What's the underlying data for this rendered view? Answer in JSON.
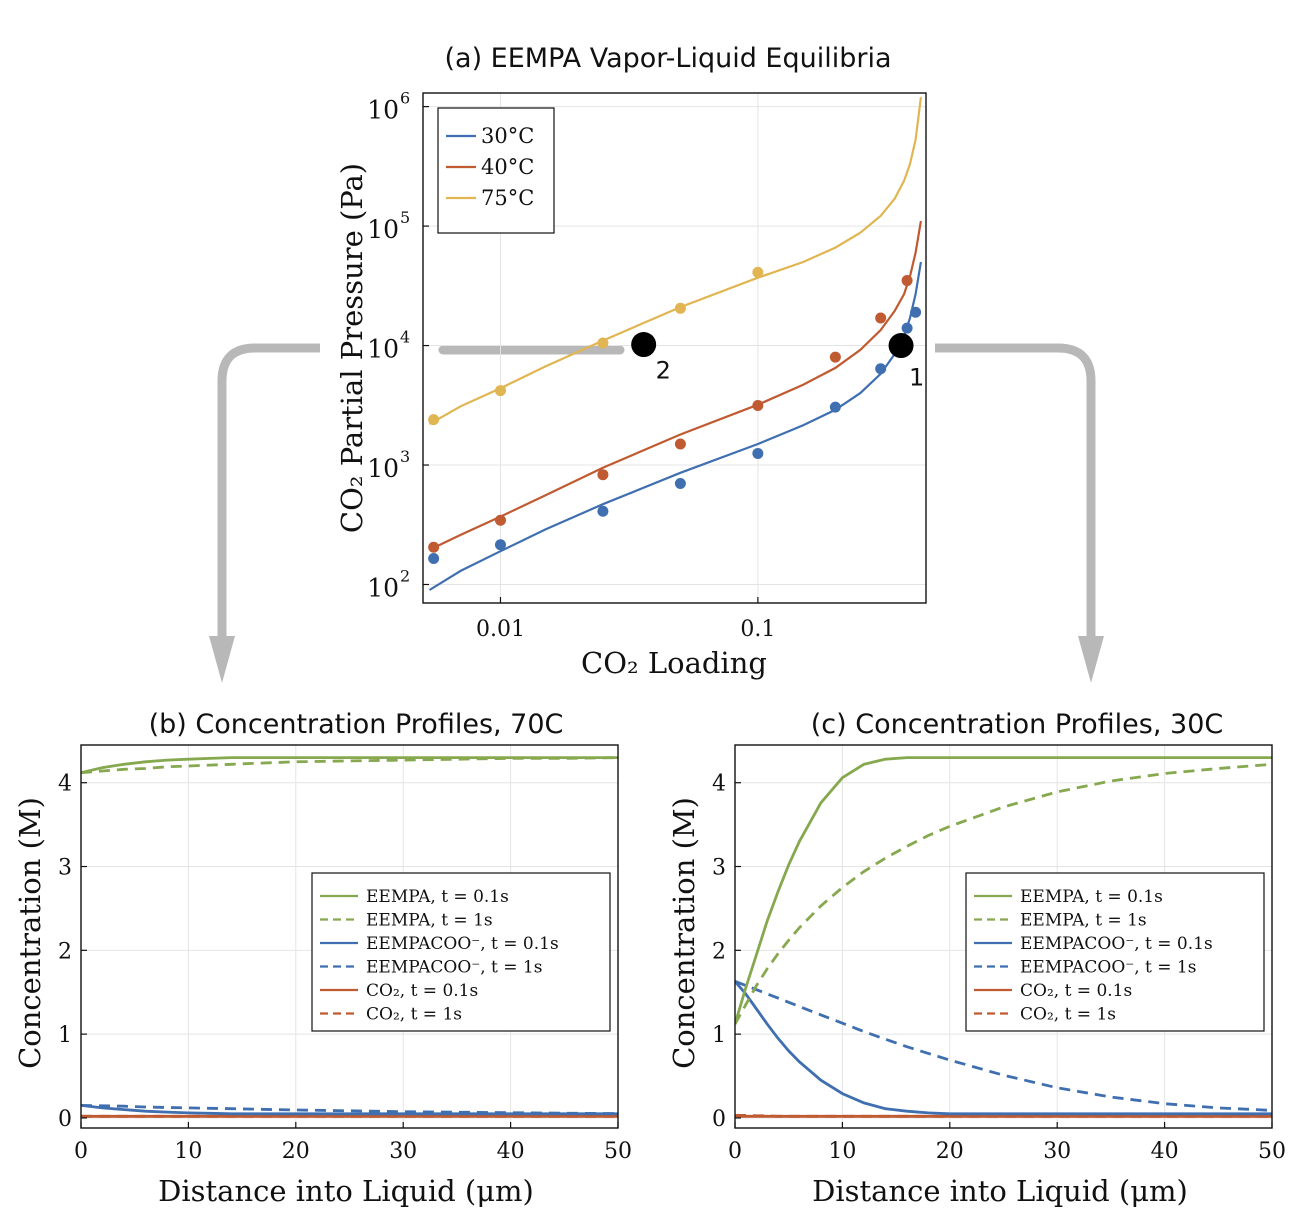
{
  "figure": {
    "arrow_color": "#b8b8b8"
  },
  "chart_data": [
    {
      "id": "a",
      "type": "line+scatter",
      "title": "(a) EEMPA Vapor-Liquid Equilibria",
      "xlabel": "CO₂ Loading",
      "ylabel": "CO₂ Partial Pressure (Pa)",
      "x_scale": "log",
      "y_scale": "log",
      "xlim": [
        0.005,
        0.45
      ],
      "ylim": [
        70,
        1300000
      ],
      "x_ticks": [
        {
          "v": 0.01,
          "label": "0.01"
        },
        {
          "v": 0.1,
          "label": "0.1"
        }
      ],
      "y_ticks": [
        {
          "v": 100,
          "base": "10",
          "exp": "2"
        },
        {
          "v": 1000,
          "base": "10",
          "exp": "3"
        },
        {
          "v": 10000,
          "base": "10",
          "exp": "4"
        },
        {
          "v": 100000,
          "base": "10",
          "exp": "5"
        },
        {
          "v": 1000000,
          "base": "10",
          "exp": "6"
        }
      ],
      "grid": true,
      "legend_position": "top-left",
      "series": [
        {
          "name": "30°C",
          "color": "#3f6fb0",
          "line_x": [
            0.0053,
            0.007,
            0.01,
            0.015,
            0.025,
            0.05,
            0.1,
            0.15,
            0.2,
            0.25,
            0.3,
            0.34,
            0.37,
            0.39,
            0.41,
            0.43
          ],
          "line_y": [
            90,
            130,
            190,
            290,
            470,
            860,
            1500,
            2150,
            2900,
            4000,
            5800,
            8500,
            12000,
            17000,
            27000,
            50000
          ],
          "points_x": [
            0.0055,
            0.01,
            0.025,
            0.05,
            0.1,
            0.2,
            0.3,
            0.38,
            0.41
          ],
          "points_y": [
            165,
            215,
            410,
            700,
            1250,
            3050,
            6400,
            14000,
            19000
          ]
        },
        {
          "name": "40°C",
          "color": "#c05a30",
          "line_x": [
            0.0053,
            0.007,
            0.01,
            0.015,
            0.025,
            0.05,
            0.1,
            0.15,
            0.2,
            0.25,
            0.3,
            0.34,
            0.37,
            0.39,
            0.41,
            0.43
          ],
          "line_y": [
            195,
            260,
            370,
            560,
            950,
            1800,
            3200,
            4700,
            6500,
            9200,
            13500,
            19500,
            27000,
            38000,
            60000,
            110000
          ],
          "points_x": [
            0.0055,
            0.01,
            0.025,
            0.05,
            0.1,
            0.2,
            0.3,
            0.38
          ],
          "points_y": [
            205,
            345,
            830,
            1500,
            3150,
            8000,
            17000,
            35000
          ]
        },
        {
          "name": "75°C",
          "color": "#e0b552",
          "line_x": [
            0.0053,
            0.007,
            0.01,
            0.015,
            0.025,
            0.05,
            0.1,
            0.15,
            0.2,
            0.25,
            0.3,
            0.34,
            0.37,
            0.39,
            0.41,
            0.43
          ],
          "line_y": [
            2200,
            3100,
            4400,
            6700,
            11000,
            21000,
            37000,
            50000,
            66000,
            88000,
            122000,
            170000,
            240000,
            330000,
            530000,
            1200000
          ],
          "points_x": [
            0.0055,
            0.01,
            0.025,
            0.05,
            0.1
          ],
          "points_y": [
            2400,
            4200,
            10500,
            20500,
            41000
          ]
        }
      ],
      "annotations": [
        {
          "label": "1",
          "x": 0.36,
          "y": 10000
        },
        {
          "label": "2",
          "x": 0.036,
          "y": 10200
        }
      ]
    },
    {
      "id": "b",
      "type": "line",
      "title": "(b) Concentration Profiles, 70C",
      "xlabel": "Distance into Liquid (μm)",
      "ylabel": "Concentration (M)",
      "xlim": [
        0,
        50
      ],
      "ylim": [
        -0.12,
        4.45
      ],
      "x_ticks": [
        0,
        10,
        20,
        30,
        40,
        50
      ],
      "y_ticks": [
        0,
        1,
        2,
        3,
        4
      ],
      "grid": true,
      "legend_position": "right",
      "x": [
        0,
        2,
        4,
        6,
        8,
        10,
        12,
        14,
        16,
        18,
        20,
        25,
        30,
        35,
        40,
        45,
        50
      ],
      "series": [
        {
          "name": "EEMPA, t = 0.1s",
          "color": "#86a84e",
          "dash": false,
          "values": [
            4.12,
            4.18,
            4.22,
            4.25,
            4.27,
            4.28,
            4.29,
            4.3,
            4.3,
            4.3,
            4.3,
            4.3,
            4.3,
            4.3,
            4.3,
            4.3,
            4.3
          ]
        },
        {
          "name": "EEMPA, t = 1s",
          "color": "#86a84e",
          "dash": true,
          "values": [
            4.12,
            4.14,
            4.16,
            4.17,
            4.19,
            4.2,
            4.21,
            4.22,
            4.23,
            4.24,
            4.25,
            4.26,
            4.27,
            4.28,
            4.29,
            4.29,
            4.3
          ]
        },
        {
          "name": "EEMPACOO⁻, t = 0.1s",
          "color": "#3f6fb0",
          "dash": false,
          "values": [
            0.15,
            0.12,
            0.1,
            0.08,
            0.07,
            0.06,
            0.055,
            0.05,
            0.05,
            0.05,
            0.05,
            0.05,
            0.05,
            0.05,
            0.05,
            0.05,
            0.05
          ]
        },
        {
          "name": "EEMPACOO⁻, t = 1s",
          "color": "#3f6fb0",
          "dash": true,
          "values": [
            0.15,
            0.145,
            0.14,
            0.13,
            0.125,
            0.12,
            0.115,
            0.11,
            0.105,
            0.1,
            0.095,
            0.085,
            0.075,
            0.068,
            0.062,
            0.056,
            0.052
          ]
        },
        {
          "name": "CO₂, t = 0.1s",
          "color": "#c05a30",
          "dash": false,
          "values": [
            0.02,
            0.02,
            0.02,
            0.02,
            0.02,
            0.02,
            0.02,
            0.02,
            0.02,
            0.02,
            0.02,
            0.02,
            0.02,
            0.02,
            0.02,
            0.02,
            0.02
          ]
        },
        {
          "name": "CO₂, t = 1s",
          "color": "#c05a30",
          "dash": true,
          "values": [
            0.02,
            0.02,
            0.02,
            0.02,
            0.02,
            0.02,
            0.02,
            0.02,
            0.02,
            0.02,
            0.02,
            0.02,
            0.02,
            0.02,
            0.02,
            0.02,
            0.02
          ]
        }
      ]
    },
    {
      "id": "c",
      "type": "line",
      "title": "(c) Concentration Profiles, 30C",
      "xlabel": "Distance into Liquid (μm)",
      "ylabel": "Concentration (M)",
      "xlim": [
        0,
        50
      ],
      "ylim": [
        -0.12,
        4.45
      ],
      "x_ticks": [
        0,
        10,
        20,
        30,
        40,
        50
      ],
      "y_ticks": [
        0,
        1,
        2,
        3,
        4
      ],
      "grid": true,
      "legend_position": "right",
      "x": [
        0,
        1,
        2,
        3,
        4,
        5,
        6,
        8,
        10,
        12,
        14,
        16,
        18,
        20,
        25,
        30,
        35,
        40,
        45,
        50
      ],
      "series": [
        {
          "name": "EEMPA, t = 0.1s",
          "color": "#86a84e",
          "dash": false,
          "values": [
            1.12,
            1.55,
            1.95,
            2.35,
            2.7,
            3.02,
            3.3,
            3.76,
            4.06,
            4.22,
            4.28,
            4.3,
            4.3,
            4.3,
            4.3,
            4.3,
            4.3,
            4.3,
            4.3,
            4.3
          ]
        },
        {
          "name": "EEMPA, t = 1s",
          "color": "#86a84e",
          "dash": true,
          "values": [
            1.12,
            1.35,
            1.58,
            1.78,
            1.96,
            2.12,
            2.27,
            2.53,
            2.75,
            2.94,
            3.1,
            3.24,
            3.37,
            3.48,
            3.71,
            3.89,
            4.02,
            4.11,
            4.17,
            4.22
          ]
        },
        {
          "name": "EEMPACOO⁻, t = 0.1s",
          "color": "#3f6fb0",
          "dash": false,
          "values": [
            1.63,
            1.48,
            1.3,
            1.12,
            0.95,
            0.8,
            0.67,
            0.45,
            0.29,
            0.18,
            0.11,
            0.08,
            0.06,
            0.05,
            0.05,
            0.05,
            0.05,
            0.05,
            0.05,
            0.05
          ]
        },
        {
          "name": "EEMPACOO⁻, t = 1s",
          "color": "#3f6fb0",
          "dash": true,
          "values": [
            1.63,
            1.58,
            1.53,
            1.48,
            1.43,
            1.38,
            1.33,
            1.23,
            1.13,
            1.03,
            0.94,
            0.85,
            0.77,
            0.69,
            0.51,
            0.36,
            0.25,
            0.17,
            0.12,
            0.09
          ]
        },
        {
          "name": "CO₂, t = 0.1s",
          "color": "#c05a30",
          "dash": false,
          "values": [
            0.02,
            0.02,
            0.02,
            0.02,
            0.02,
            0.02,
            0.02,
            0.02,
            0.02,
            0.02,
            0.02,
            0.02,
            0.02,
            0.02,
            0.02,
            0.02,
            0.02,
            0.02,
            0.02,
            0.02
          ]
        },
        {
          "name": "CO₂, t = 1s",
          "color": "#c05a30",
          "dash": true,
          "values": [
            0.03,
            0.03,
            0.025,
            0.025,
            0.02,
            0.02,
            0.02,
            0.02,
            0.02,
            0.02,
            0.02,
            0.02,
            0.02,
            0.02,
            0.02,
            0.02,
            0.02,
            0.02,
            0.02,
            0.02
          ]
        }
      ]
    }
  ]
}
